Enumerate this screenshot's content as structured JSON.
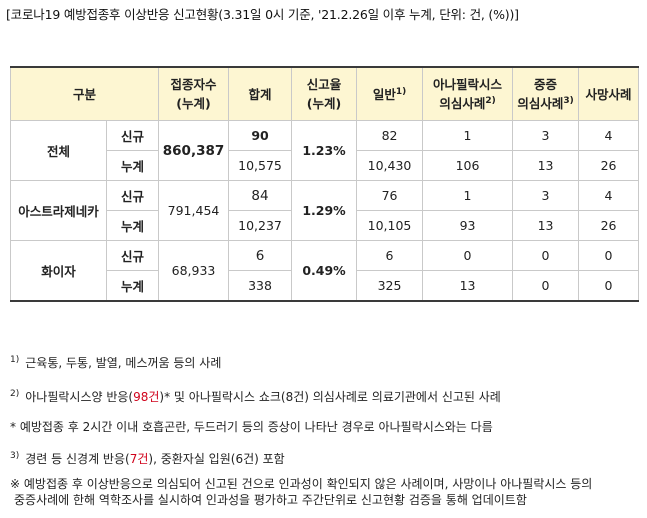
{
  "title": "[코로나19 예방접종후 이상반응 신고현황(3.31일 0시 기준, '21.2.26일 이후 누계, 단위: 건, (%))]",
  "headers": {
    "category": "구분",
    "vaccinated_l1": "접종자수",
    "vaccinated_l2": "(누계)",
    "total": "합계",
    "rate_l1": "신고율",
    "rate_l2": "(누계)",
    "general": "일반",
    "general_note": "1)",
    "anaphylaxis_l1": "아나필락시스",
    "anaphylaxis_l2": "의심사례",
    "anaphylaxis_note": "2)",
    "serious_l1": "중증",
    "serious_l2": "의심사례",
    "serious_note": "3)",
    "death": "사망사례"
  },
  "rows": [
    {
      "group": "전체",
      "vaccinated": "860,387",
      "rate": "1.23%",
      "new": {
        "label": "신규",
        "total": "90",
        "general": "82",
        "anaphylaxis": "1",
        "serious": "3",
        "death": "4"
      },
      "cum": {
        "label": "누계",
        "total": "10,575",
        "general": "10,430",
        "anaphylaxis": "106",
        "serious": "13",
        "death": "26"
      }
    },
    {
      "group": "아스트라제네카",
      "vaccinated": "791,454",
      "rate": "1.29%",
      "new": {
        "label": "신규",
        "total": "84",
        "general": "76",
        "anaphylaxis": "1",
        "serious": "3",
        "death": "4"
      },
      "cum": {
        "label": "누계",
        "total": "10,237",
        "general": "10,105",
        "anaphylaxis": "93",
        "serious": "13",
        "death": "26"
      }
    },
    {
      "group": "화이자",
      "vaccinated": "68,933",
      "rate": "0.49%",
      "new": {
        "label": "신규",
        "total": "6",
        "general": "6",
        "anaphylaxis": "0",
        "serious": "0",
        "death": "0"
      },
      "cum": {
        "label": "누계",
        "total": "338",
        "general": "325",
        "anaphylaxis": "13",
        "serious": "0",
        "death": "0"
      }
    }
  ],
  "notes": {
    "n1_mark": "1)",
    "n1_text": "근육통, 두통, 발열, 메스꺼움 등의 사례",
    "n2_mark": "2)",
    "n2_pre": "아나필락시스양 반응(",
    "n2_red": "98건",
    "n2_post": ")* 및 아나필락시스 쇼크(8건) 의심사례로 의료기관에서 신고된 사례",
    "n2b_text": "* 예방접종 후 2시간 이내 호흡곤란, 두드러기 등의 증상이 나타난 경우로 아나필락시스와는 다름",
    "n3_mark": "3)",
    "n3_pre": "경련 등 신경계 반응(",
    "n3_red": "7건",
    "n3_post": "), 중환자실 입원(6건) 포함",
    "n4_line1": "※ 예방접종 후 이상반응으로 의심되어 신고된 건으로 인과성이 확인되지 않은 사례이며, 사망이나 아나필락시스 등의",
    "n4_line2": "중증사례에 한해 역학조사를 실시하여 인과성을 평가하고 주간단위로 신고현황 검증을 통해 업데이트함"
  }
}
